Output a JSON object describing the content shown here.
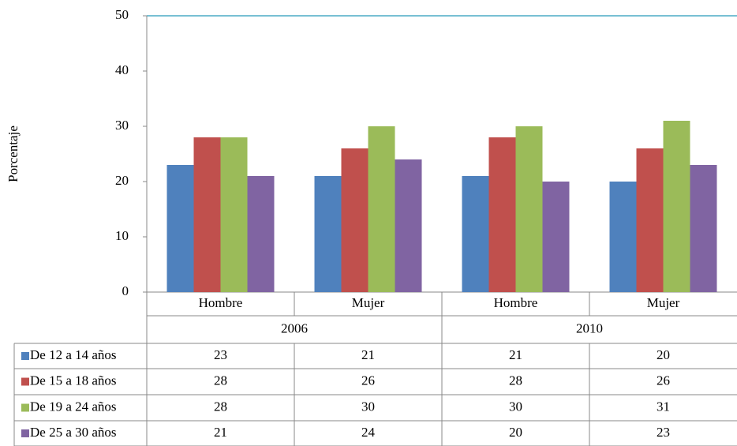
{
  "chart_data": {
    "type": "bar",
    "y_label": "Porcentaje",
    "categories": [
      "Hombre",
      "Mujer",
      "Hombre",
      "Mujer"
    ],
    "groups": [
      "2006",
      "2010"
    ],
    "series": [
      {
        "name": "De 12 a 14 años",
        "color": "#4f81bd",
        "values": [
          23,
          21,
          21,
          20
        ]
      },
      {
        "name": "De 15 a 18 años",
        "color": "#c0504d",
        "values": [
          28,
          26,
          28,
          26
        ]
      },
      {
        "name": "De 19 a 24 años",
        "color": "#9bbb59",
        "values": [
          28,
          30,
          30,
          31
        ]
      },
      {
        "name": "De 25 a 30 años",
        "color": "#8064a2",
        "values": [
          21,
          24,
          20,
          23
        ]
      }
    ],
    "ylim": [
      0,
      50
    ],
    "yticks": [
      0,
      10,
      20,
      30,
      40,
      50
    ],
    "grid": false
  }
}
